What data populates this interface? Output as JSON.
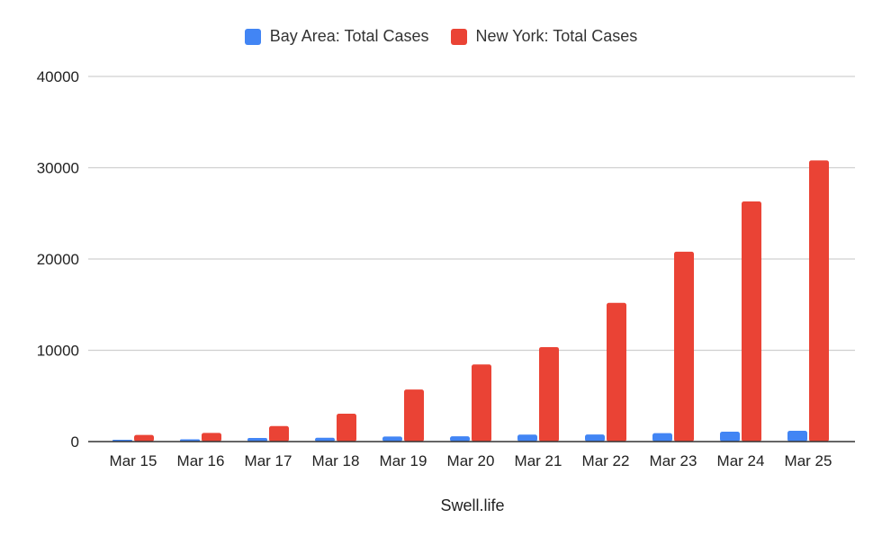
{
  "legend": {
    "items": [
      {
        "label": "Bay Area: Total Cases",
        "color": "#4285F4"
      },
      {
        "label": "New York: Total Cases",
        "color": "#EA4335"
      }
    ]
  },
  "footer": {
    "label": "Swell.life"
  },
  "chart_data": {
    "type": "bar",
    "title": "",
    "xlabel": "Swell.life",
    "ylabel": "",
    "ylim": [
      0,
      40000
    ],
    "yticks": [
      0,
      10000,
      20000,
      30000,
      40000
    ],
    "grid": true,
    "legend_position": "top",
    "categories": [
      "Mar 15",
      "Mar 16",
      "Mar 17",
      "Mar 18",
      "Mar 19",
      "Mar 20",
      "Mar 21",
      "Mar 22",
      "Mar 23",
      "Mar 24",
      "Mar 25"
    ],
    "series": [
      {
        "name": "Bay Area: Total Cases",
        "color": "#4285F4",
        "values": [
          200,
          250,
          400,
          420,
          560,
          580,
          760,
          780,
          920,
          1080,
          1180
        ]
      },
      {
        "name": "New York: Total Cases",
        "color": "#EA4335",
        "values": [
          730,
          950,
          1700,
          3050,
          5700,
          8450,
          10350,
          15200,
          20800,
          26300,
          30800
        ]
      }
    ]
  }
}
